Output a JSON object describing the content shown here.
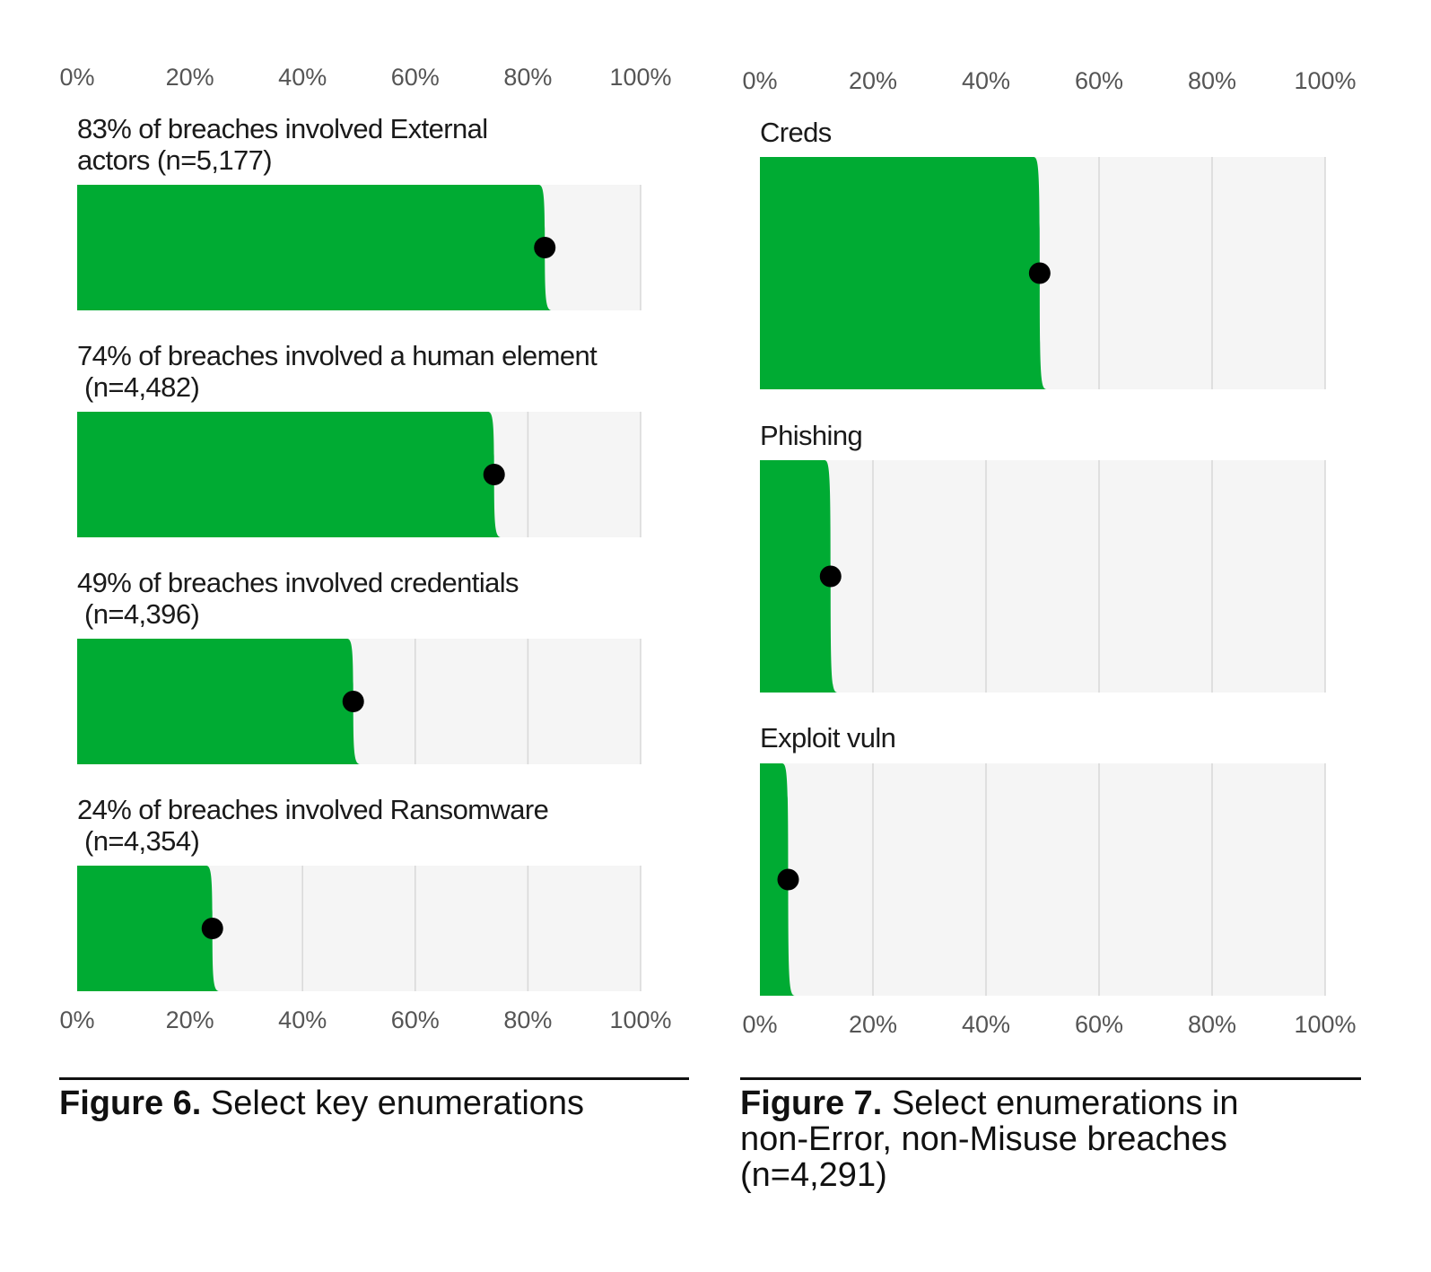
{
  "colors": {
    "bar": "#00ab33",
    "track": "#f5f5f5",
    "grid": "#d8d8d8",
    "dot": "#000000",
    "tick": "#555555"
  },
  "chart_data": [
    {
      "type": "bar",
      "orientation": "horizontal",
      "xlim": [
        0,
        100
      ],
      "tick_labels": [
        "0%",
        "20%",
        "40%",
        "60%",
        "80%",
        "100%"
      ],
      "ticks_position": "top and bottom",
      "categories": [
        "83% of breaches involved External actors (n=5,177)",
        "74% of breaches involved a human element (n=4,482)",
        "49% of breaches involved credentials (n=4,396)",
        "24% of breaches involved Ransomware (n=4,354)"
      ],
      "label_lines": [
        [
          "83% of breaches involved External",
          "actors (n=5,177)"
        ],
        [
          "74% of breaches involved a human element",
          " (n=4,482)"
        ],
        [
          "49% of breaches involved credentials",
          " (n=4,396)"
        ],
        [
          "24% of breaches involved Ransomware",
          " (n=4,354)"
        ]
      ],
      "values": [
        83,
        74,
        49,
        24
      ],
      "caption_bold": "Figure 6.",
      "caption_text": " Select key enumerations"
    },
    {
      "type": "bar",
      "orientation": "horizontal",
      "xlim": [
        0,
        100
      ],
      "tick_labels": [
        "0%",
        "20%",
        "40%",
        "60%",
        "80%",
        "100%"
      ],
      "ticks_position": "top and bottom",
      "categories": [
        "Creds",
        "Phishing",
        "Exploit vuln"
      ],
      "label_lines": [
        [
          "Creds"
        ],
        [
          "Phishing"
        ],
        [
          "Exploit vuln"
        ]
      ],
      "values": [
        49.5,
        12.5,
        5
      ],
      "caption_bold": "Figure 7.",
      "caption_lines": [
        "Select enumerations in",
        "non-Error, non-Misuse breaches",
        "(n=4,291)"
      ]
    }
  ]
}
